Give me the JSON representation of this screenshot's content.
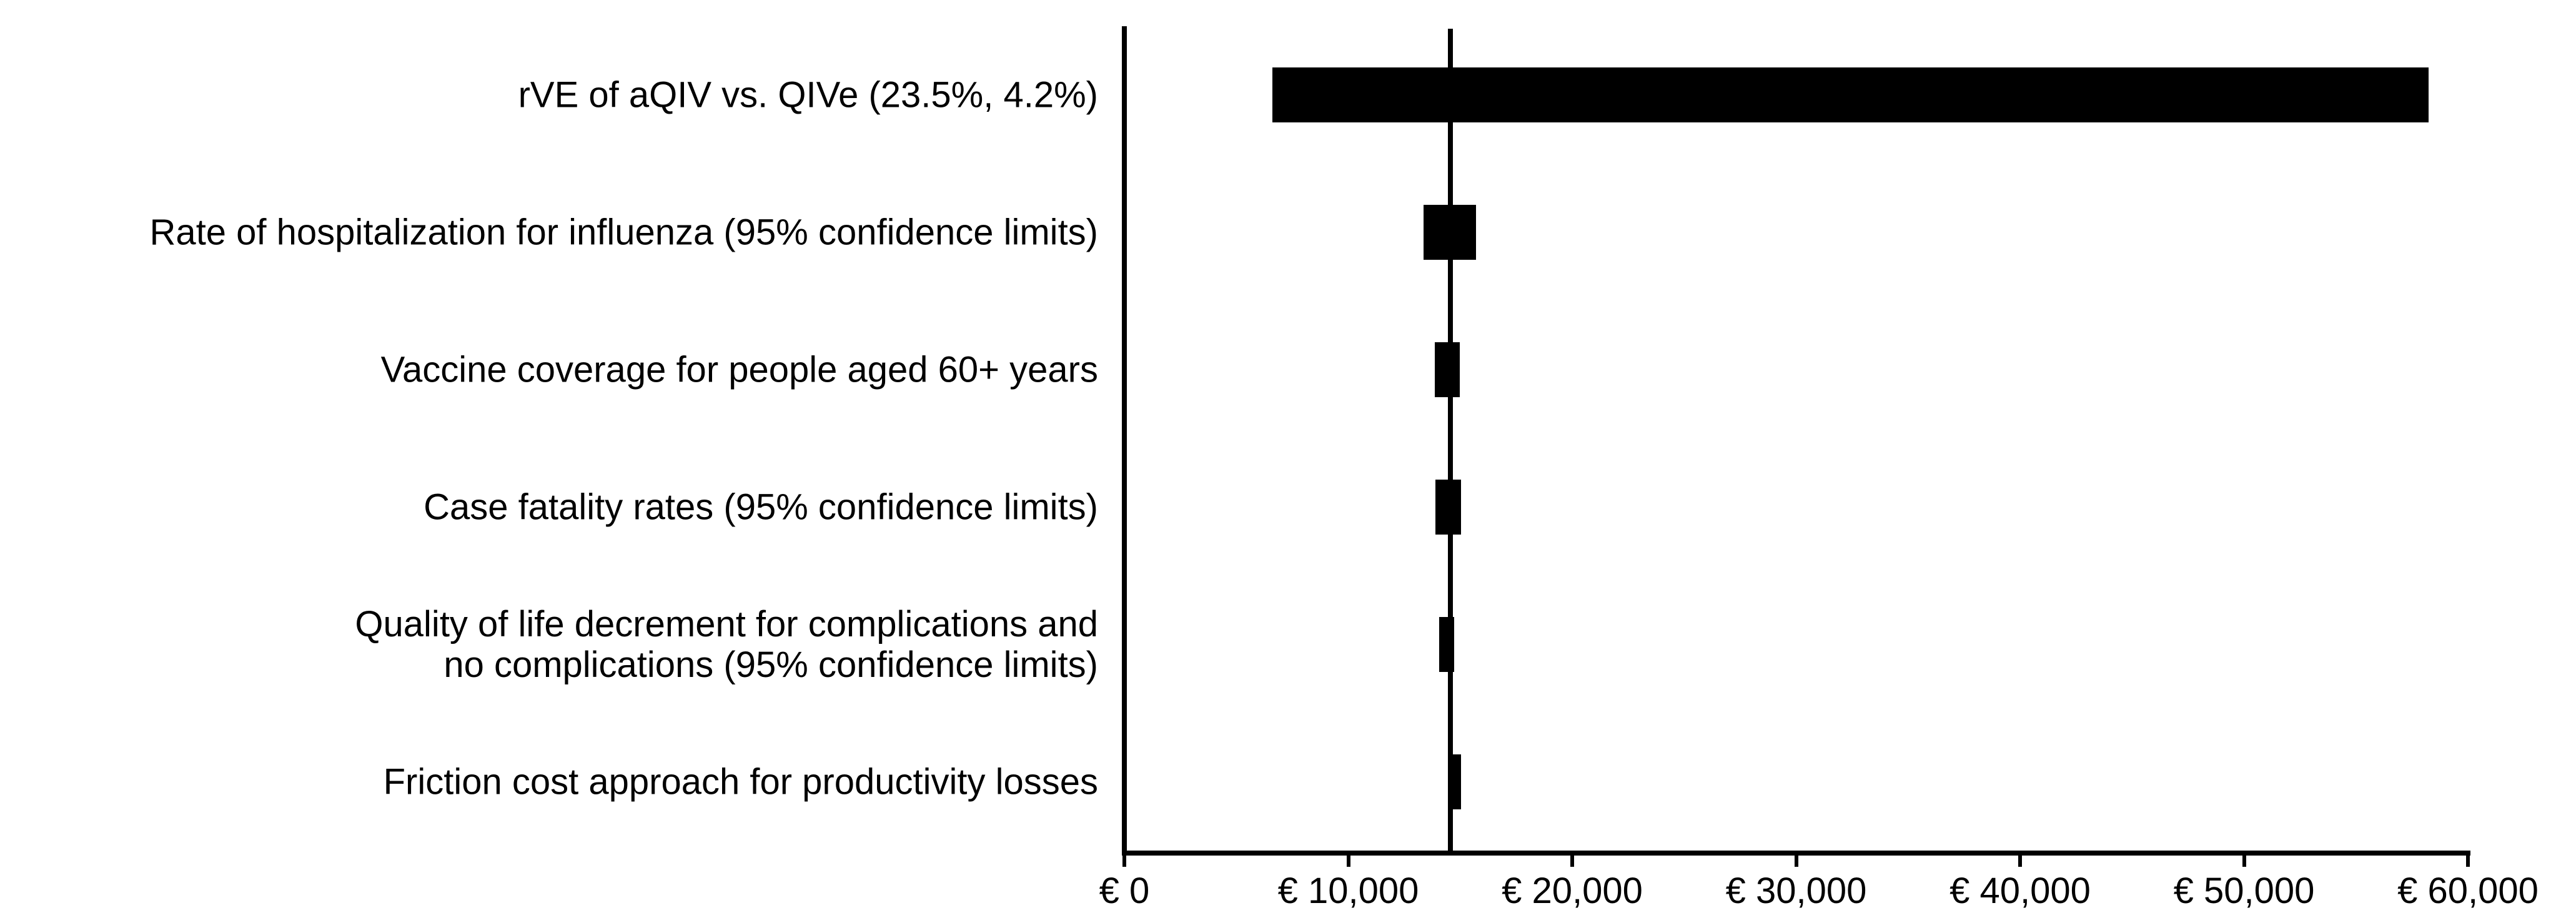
{
  "chart_data": {
    "type": "bar",
    "subtype": "tornado-diagram",
    "orientation": "horizontal",
    "title": "",
    "xlabel": "",
    "ylabel": "",
    "currency": "EUR",
    "grid": false,
    "legend": false,
    "bar_color": "#000000",
    "background_color": "#ffffff",
    "baseline_value": 14550,
    "x_axis": {
      "min": 0,
      "max": 60000,
      "tick_values": [
        0,
        10000,
        20000,
        30000,
        40000,
        50000,
        60000
      ],
      "tick_labels": [
        "€ 0",
        "€ 10,000",
        "€ 20,000",
        "€ 30,000",
        "€ 40,000",
        "€ 50,000",
        "€ 60,000"
      ]
    },
    "series": [
      {
        "label": "rVE of aQIV vs. QIVe (23.5%, 4.2%)",
        "label_lines": [
          "rVE of aQIV vs. QIVe (23.5%, 4.2%)"
        ],
        "low": 6600,
        "high": 58250
      },
      {
        "label": "Rate of hospitalization for influenza (95% confidence limits)",
        "label_lines": [
          "Rate of hospitalization for influenza (95% confidence limits)"
        ],
        "low": 13370,
        "high": 15700
      },
      {
        "label": "Vaccine coverage for people aged 60+ years",
        "label_lines": [
          "Vaccine coverage for people aged 60+ years"
        ],
        "low": 13860,
        "high": 14980
      },
      {
        "label": "Case fatality rates (95% confidence limits)",
        "label_lines": [
          "Case fatality rates (95% confidence limits)"
        ],
        "low": 13900,
        "high": 15030
      },
      {
        "label": "Quality of life decrement for complications and no complications (95% confidence limits)",
        "label_lines": [
          "Quality of life decrement for complications and",
          "no complications (95% confidence limits)"
        ],
        "low": 14060,
        "high": 14730
      },
      {
        "label": "Friction cost approach for productivity losses",
        "label_lines": [
          "Friction cost approach for productivity losses"
        ],
        "low": 14550,
        "high": 15030
      }
    ]
  }
}
